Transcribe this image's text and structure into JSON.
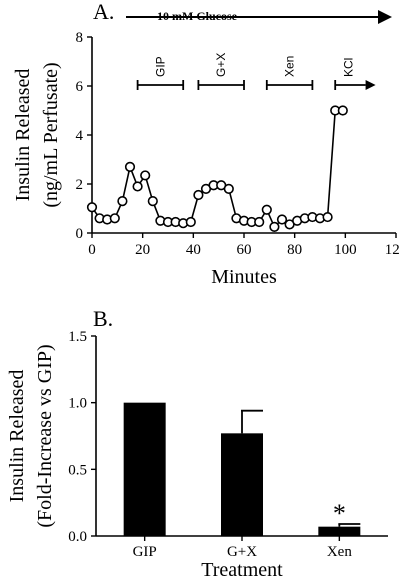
{
  "chart_data": [
    {
      "type": "line",
      "panel_label": "A.",
      "xlabel": "Minutes",
      "ylabel_line1": "Insulin Released",
      "ylabel_line2": "(ng/mL Perfusate)",
      "xlim": [
        0,
        120
      ],
      "ylim": [
        0,
        8
      ],
      "xticks": [
        0,
        20,
        40,
        60,
        80,
        100,
        120
      ],
      "yticks": [
        0,
        2,
        4,
        6,
        8
      ],
      "glucose_label": "10 mM Glucose",
      "treatments": [
        {
          "label": "GIP",
          "x_start": 18,
          "x_end": 36
        },
        {
          "label": "G+X",
          "x_start": 42,
          "x_end": 60
        },
        {
          "label": "Xen",
          "x_start": 69,
          "x_end": 87
        },
        {
          "label": "KCl",
          "x_start": 96,
          "x_end": 108
        }
      ],
      "series": [
        {
          "marker": "open-circle",
          "x": [
            0,
            3,
            6,
            9,
            12,
            15,
            18,
            21,
            24,
            27,
            30,
            33,
            36,
            39,
            42,
            45,
            48,
            51,
            54,
            57,
            60,
            63,
            66,
            69,
            72,
            75,
            78,
            81,
            84,
            87,
            90,
            93,
            96,
            99
          ],
          "y": [
            1.05,
            0.6,
            0.55,
            0.6,
            1.3,
            2.7,
            1.9,
            2.35,
            1.3,
            0.5,
            0.45,
            0.45,
            0.4,
            0.45,
            1.55,
            1.8,
            1.95,
            1.95,
            1.8,
            0.6,
            0.5,
            0.45,
            0.45,
            0.95,
            0.25,
            0.55,
            0.35,
            0.5,
            0.6,
            0.65,
            0.6,
            0.65,
            5.0,
            5.0
          ]
        }
      ]
    },
    {
      "type": "bar",
      "panel_label": "B.",
      "xlabel": "Treatment",
      "ylabel_line1": "Insulin Released",
      "ylabel_line2": "(Fold-Increase vs GIP)",
      "ylim": [
        0,
        1.5
      ],
      "yticks": [
        "0.0",
        "0.5",
        "1.0",
        "1.5"
      ],
      "categories": [
        "GIP",
        "G+X",
        "Xen"
      ],
      "values": [
        1.0,
        0.77,
        0.07
      ],
      "errors": [
        0,
        0.17,
        0.02
      ],
      "annotations": [
        "",
        "",
        "*"
      ]
    }
  ]
}
